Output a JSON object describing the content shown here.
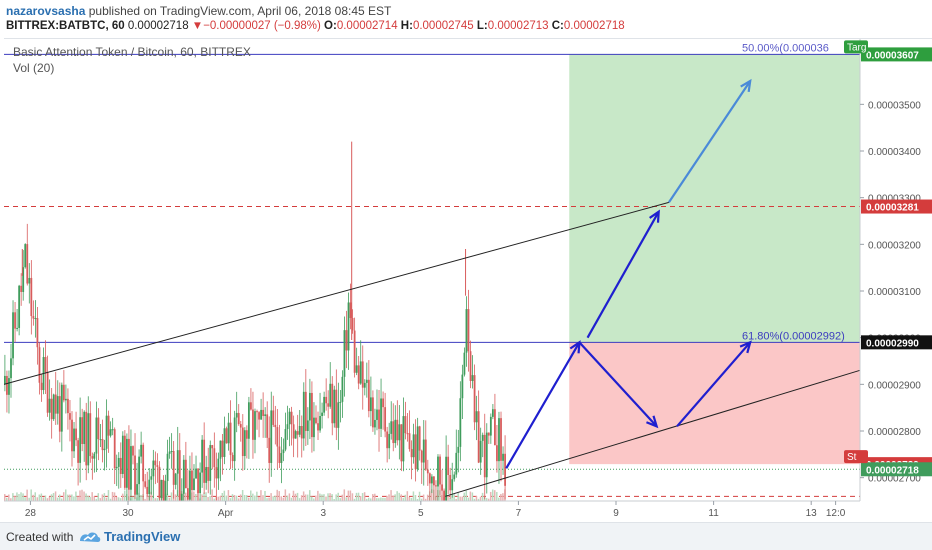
{
  "header": {
    "author": "nazarovsasha",
    "published_text": "published on TradingView.com, April 06, 2018 08:45 EST",
    "symbol": "BITTREX:BATBTC, 60",
    "last": "0.00002718",
    "change_symbol": "▼",
    "change": "−0.00000027 (−0.98%)",
    "o_label": "O:",
    "o_value": "0.00002714",
    "h_label": "H:",
    "h_value": "0.00002745",
    "l_label": "L:",
    "l_value": "0.00002713",
    "c_label": "C:",
    "c_value": "0.00002718"
  },
  "legend": {
    "title": "Basic Attention Token / Bitcoin, 60, BITTREX",
    "volume": "Vol (20)"
  },
  "footer": {
    "created_with": "Created with",
    "brand": "TradingView"
  },
  "colors": {
    "up": "#3f9c5c",
    "down": "#d85c5c",
    "profit_zone": "#c8e8c8",
    "loss_zone": "#fbc7c7",
    "blue_level": "#3c3cbf",
    "red_level": "#d43c3c",
    "arrow_dark": "#1f1fcf",
    "arrow_light": "#4a8ad8",
    "trendline": "#222222"
  },
  "chart_data": {
    "type": "candlestick",
    "y_axis": {
      "min": 2.65e-05,
      "max": 3.64e-05,
      "ticks": [
        "0.00003500",
        "0.00003400",
        "0.00003300",
        "0.00003200",
        "0.00003100",
        "0.00003000",
        "0.00002900",
        "0.00002800",
        "0.00002700"
      ],
      "tick_values": [
        3.5e-05,
        3.4e-05,
        3.3e-05,
        3.2e-05,
        3.1e-05,
        3e-05,
        2.9e-05,
        2.8e-05,
        2.7e-05
      ]
    },
    "x_axis": {
      "start": "2018-03-27T11:00",
      "end": "2018-04-13T24:00",
      "tick_labels": [
        "28",
        "30",
        "Apr",
        "3",
        "5",
        "7",
        "9",
        "11",
        "13",
        "12:0"
      ],
      "tick_dates": [
        "2018-03-28",
        "2018-03-30",
        "2018-04-01",
        "2018-04-03",
        "2018-04-05",
        "2018-04-07",
        "2018-04-09",
        "2018-04-11",
        "2018-04-13",
        "2018-04-13T12:00"
      ]
    },
    "price_labels": [
      {
        "text": "0.00003607",
        "value": 3.607e-05,
        "color": "#2e9e3e"
      },
      {
        "text": "0.00003281",
        "value": 3.281e-05,
        "color": "#d43c3c"
      },
      {
        "text": "0.00002990",
        "value": 2.99e-05,
        "color": "#111111"
      },
      {
        "text": "0.00002729",
        "value": 2.729e-05,
        "color": "#d43c3c"
      },
      {
        "text": "0.00002718",
        "value": 2.718e-05,
        "color": "#3f9c5c"
      }
    ],
    "axis_tags": [
      {
        "text": "Targ",
        "value": 3.607e-05,
        "color": "#2e9e3e"
      },
      {
        "text": "St",
        "value": 2.729e-05,
        "color": "#d43c3c"
      }
    ],
    "fib_levels": [
      {
        "text": "50.00%(0.000036",
        "value": 3.607e-05,
        "color": "#5a5ac8"
      },
      {
        "text": "61.80%(0.00002992)",
        "value": 2.99e-05,
        "color": "#3c3cbf"
      }
    ],
    "horizontal_lines": [
      {
        "value": 3.607e-05,
        "color": "#3c3cbf",
        "dash": false
      },
      {
        "value": 2.99e-05,
        "color": "#3c3cbf",
        "dash": false
      },
      {
        "value": 3.281e-05,
        "color": "#d43c3c",
        "dash": true
      },
      {
        "value": 2.66e-05,
        "color": "#d43c3c",
        "dash": true
      },
      {
        "value": 2.718e-05,
        "color": "#3f9c5c",
        "dash": "dot"
      }
    ],
    "position_zone": {
      "start": "2018-04-08T01:00",
      "end": "2018-04-13T24:00",
      "entry": 2.99e-05,
      "target": 3.607e-05,
      "stop": 2.729e-05
    },
    "trendlines": [
      {
        "x1": "2018-03-27T11:00",
        "y1": 2.9e-05,
        "x2": "2018-04-10T02:00",
        "y2": 3.29e-05
      },
      {
        "x1": "2018-04-05T12:00",
        "y1": 2.66e-05,
        "x2": "2018-04-13T24:00",
        "y2": 2.93e-05
      }
    ],
    "arrows": [
      {
        "x1": "2018-04-06T18:00",
        "y1": 2.72e-05,
        "x2": "2018-04-08T06:00",
        "y2": 2.99e-05,
        "color": "#1f1fcf"
      },
      {
        "x1": "2018-04-08T06:00",
        "y1": 2.99e-05,
        "x2": "2018-04-09T20:00",
        "y2": 2.81e-05,
        "color": "#1f1fcf"
      },
      {
        "x1": "2018-04-10T06:00",
        "y1": 2.81e-05,
        "x2": "2018-04-11T18:00",
        "y2": 2.99e-05,
        "color": "#1f1fcf"
      },
      {
        "x1": "2018-04-08T10:00",
        "y1": 3e-05,
        "x2": "2018-04-09T21:00",
        "y2": 3.27e-05,
        "color": "#1f1fcf"
      },
      {
        "x1": "2018-04-10T02:00",
        "y1": 3.29e-05,
        "x2": "2018-04-11T18:00",
        "y2": 3.55e-05,
        "color": "#4a8ad8"
      }
    ],
    "price_path": [
      {
        "t": "2018-03-27T11:00",
        "p": 2.9e-05
      },
      {
        "t": "2018-03-27T17:00",
        "p": 3.05e-05
      },
      {
        "t": "2018-03-27T21:00",
        "p": 3.16e-05
      },
      {
        "t": "2018-03-28T04:00",
        "p": 2.93e-05
      },
      {
        "t": "2018-03-28T12:00",
        "p": 2.86e-05
      },
      {
        "t": "2018-03-29T00:00",
        "p": 2.78e-05
      },
      {
        "t": "2018-03-29T12:00",
        "p": 2.8e-05
      },
      {
        "t": "2018-03-30T00:00",
        "p": 2.72e-05
      },
      {
        "t": "2018-03-30T12:00",
        "p": 2.71e-05
      },
      {
        "t": "2018-03-31T00:00",
        "p": 2.7e-05
      },
      {
        "t": "2018-03-31T12:00",
        "p": 2.73e-05
      },
      {
        "t": "2018-04-01T00:00",
        "p": 2.77e-05
      },
      {
        "t": "2018-04-01T12:00",
        "p": 2.81e-05
      },
      {
        "t": "2018-04-02T00:00",
        "p": 2.78e-05
      },
      {
        "t": "2018-04-02T12:00",
        "p": 2.83e-05
      },
      {
        "t": "2018-04-03T00:00",
        "p": 2.86e-05
      },
      {
        "t": "2018-04-03T08:00",
        "p": 2.85e-05
      },
      {
        "t": "2018-04-03T12:00",
        "p": 3.07e-05
      },
      {
        "t": "2018-04-03T16:00",
        "p": 2.92e-05
      },
      {
        "t": "2018-04-04T00:00",
        "p": 2.85e-05
      },
      {
        "t": "2018-04-04T12:00",
        "p": 2.79e-05
      },
      {
        "t": "2018-04-05T00:00",
        "p": 2.75e-05
      },
      {
        "t": "2018-04-05T12:00",
        "p": 2.69e-05
      },
      {
        "t": "2018-04-05T18:00",
        "p": 2.75e-05
      },
      {
        "t": "2018-04-05T22:00",
        "p": 3.09e-05
      },
      {
        "t": "2018-04-06T02:00",
        "p": 2.79e-05
      },
      {
        "t": "2018-04-06T08:00",
        "p": 2.75e-05
      },
      {
        "t": "2018-04-06T12:00",
        "p": 2.81e-05
      },
      {
        "t": "2018-04-06T17:00",
        "p": 2.718e-05
      }
    ],
    "wick_spikes": [
      {
        "t": "2018-03-27T20:00",
        "high": 3.19e-05
      },
      {
        "t": "2018-04-03T14:00",
        "high": 3.42e-05
      },
      {
        "t": "2018-04-05T22:00",
        "high": 3.19e-05
      }
    ]
  }
}
